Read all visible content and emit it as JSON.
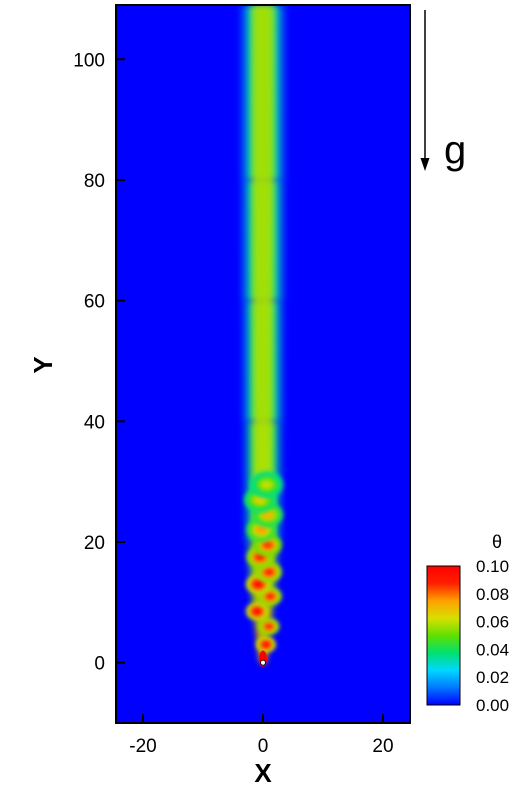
{
  "chart_data": {
    "type": "heatmap",
    "xlabel": "X",
    "ylabel": "Y",
    "xlim": [
      -24.5,
      24.5
    ],
    "ylim": [
      -10,
      109
    ],
    "x_ticks": [
      {
        "value": -20,
        "label": "-20"
      },
      {
        "value": 0,
        "label": "0"
      },
      {
        "value": 20,
        "label": "20"
      }
    ],
    "y_ticks": [
      {
        "value": 0,
        "label": "0"
      },
      {
        "value": 20,
        "label": "20"
      },
      {
        "value": 40,
        "label": "40"
      },
      {
        "value": 60,
        "label": "60"
      },
      {
        "value": 80,
        "label": "80"
      },
      {
        "value": 100,
        "label": "100"
      }
    ],
    "colorbar": {
      "title": "θ",
      "range": [
        0.0,
        0.1
      ],
      "ticks": [
        {
          "value": 0.1,
          "label": "0.10"
        },
        {
          "value": 0.08,
          "label": "0.08"
        },
        {
          "value": 0.06,
          "label": "0.06"
        },
        {
          "value": 0.04,
          "label": "0.04"
        },
        {
          "value": 0.02,
          "label": "0.02"
        },
        {
          "value": 0.0,
          "label": "0.00"
        }
      ],
      "colors": [
        "#0000ff",
        "#0078ff",
        "#00d8ff",
        "#00e070",
        "#60e000",
        "#d8e000",
        "#ffa000",
        "#ff2000",
        "#ff0000"
      ]
    },
    "gravity_label": "g",
    "background_value": 0.0,
    "plume": {
      "source": [
        0,
        0
      ],
      "eddies": [
        {
          "x": 0.5,
          "y": 3,
          "value": 0.1
        },
        {
          "x": 1.0,
          "y": 6,
          "value": 0.09
        },
        {
          "x": -1.0,
          "y": 8.5,
          "value": 0.1
        },
        {
          "x": 1.2,
          "y": 11,
          "value": 0.09
        },
        {
          "x": -0.8,
          "y": 13,
          "value": 0.1
        },
        {
          "x": 1.0,
          "y": 15,
          "value": 0.09
        },
        {
          "x": -0.5,
          "y": 17.5,
          "value": 0.09
        },
        {
          "x": 0.8,
          "y": 19.5,
          "value": 0.085
        },
        {
          "x": -0.3,
          "y": 22,
          "value": 0.075
        },
        {
          "x": 0.8,
          "y": 24.5,
          "value": 0.07
        },
        {
          "x": -0.5,
          "y": 27,
          "value": 0.065
        },
        {
          "x": 0.6,
          "y": 29.5,
          "value": 0.06
        }
      ],
      "centerline": [
        {
          "y": 0,
          "value": 0.1,
          "half_width": 0.5
        },
        {
          "y": 20,
          "value": 0.065,
          "half_width": 3.0
        },
        {
          "y": 40,
          "value": 0.055,
          "half_width": 3.5
        },
        {
          "y": 60,
          "value": 0.053,
          "half_width": 3.7
        },
        {
          "y": 80,
          "value": 0.052,
          "half_width": 3.9
        },
        {
          "y": 109,
          "value": 0.05,
          "half_width": 4.0
        }
      ]
    }
  }
}
